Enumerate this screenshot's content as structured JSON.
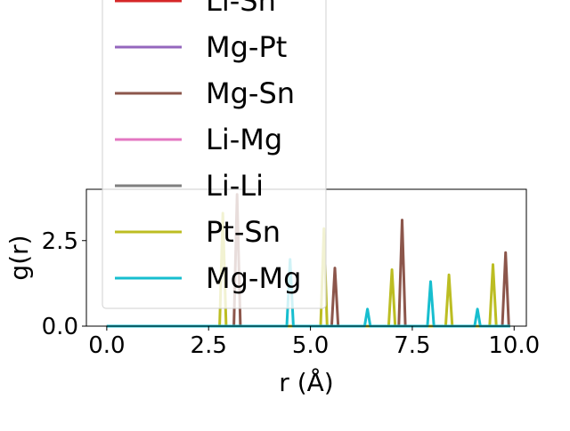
{
  "chart_data": {
    "type": "line",
    "title": "",
    "xlabel": "r (Å)",
    "ylabel": "g(r)",
    "xlim": [
      -0.5,
      10.3
    ],
    "ylim": [
      0.0,
      4.0
    ],
    "xticks": [
      0.0,
      2.5,
      5.0,
      7.5,
      10.0
    ],
    "xtick_labels": [
      "0.0",
      "2.5",
      "5.0",
      "7.5",
      "10.0"
    ],
    "yticks": [
      0.0,
      2.5
    ],
    "ytick_labels": [
      "0.0",
      "2.5"
    ],
    "grid": false,
    "legend_position": "upper-left, extending above the axes",
    "series": [
      {
        "name": "Li-Sn",
        "color": "#d62728",
        "x": [
          0.0,
          9.9
        ],
        "y": [
          0.0,
          0.0
        ]
      },
      {
        "name": "Mg-Pt",
        "color": "#9467bd",
        "x": [
          0.0,
          9.9
        ],
        "y": [
          0.0,
          0.0
        ]
      },
      {
        "name": "Mg-Sn",
        "color": "#8c564b",
        "x": [
          0.0,
          3.12,
          3.2,
          3.28,
          5.52,
          5.6,
          5.68,
          7.17,
          7.25,
          7.33,
          9.71,
          9.79,
          9.87,
          9.9
        ],
        "y": [
          0.0,
          0.0,
          3.85,
          0.0,
          0.0,
          1.7,
          0.0,
          0.0,
          3.1,
          0.0,
          0.0,
          2.15,
          0.0,
          0.0
        ]
      },
      {
        "name": "Li-Mg",
        "color": "#e377c2",
        "x": [
          0.0,
          9.9
        ],
        "y": [
          0.0,
          0.0
        ]
      },
      {
        "name": "Li-Li",
        "color": "#7f7f7f",
        "x": [
          0.0,
          9.9
        ],
        "y": [
          0.0,
          0.0
        ]
      },
      {
        "name": "Pt-Sn",
        "color": "#bcbd22",
        "x": [
          0.0,
          2.77,
          2.85,
          2.93,
          5.25,
          5.33,
          5.41,
          6.92,
          7.0,
          7.08,
          8.32,
          8.4,
          8.48,
          9.4,
          9.48,
          9.56,
          9.9
        ],
        "y": [
          0.0,
          0.0,
          3.3,
          0.0,
          0.0,
          2.85,
          0.0,
          0.0,
          1.65,
          0.0,
          0.0,
          1.5,
          0.0,
          0.0,
          1.8,
          0.0,
          0.0
        ]
      },
      {
        "name": "Mg-Mg",
        "color": "#17becf",
        "x": [
          0.0,
          4.42,
          4.5,
          4.58,
          6.33,
          6.4,
          6.47,
          7.87,
          7.95,
          8.03,
          9.03,
          9.1,
          9.17,
          9.9
        ],
        "y": [
          0.0,
          0.0,
          1.95,
          0.0,
          0.0,
          0.5,
          0.0,
          0.0,
          1.3,
          0.0,
          0.0,
          0.5,
          0.0,
          0.0
        ]
      }
    ]
  }
}
